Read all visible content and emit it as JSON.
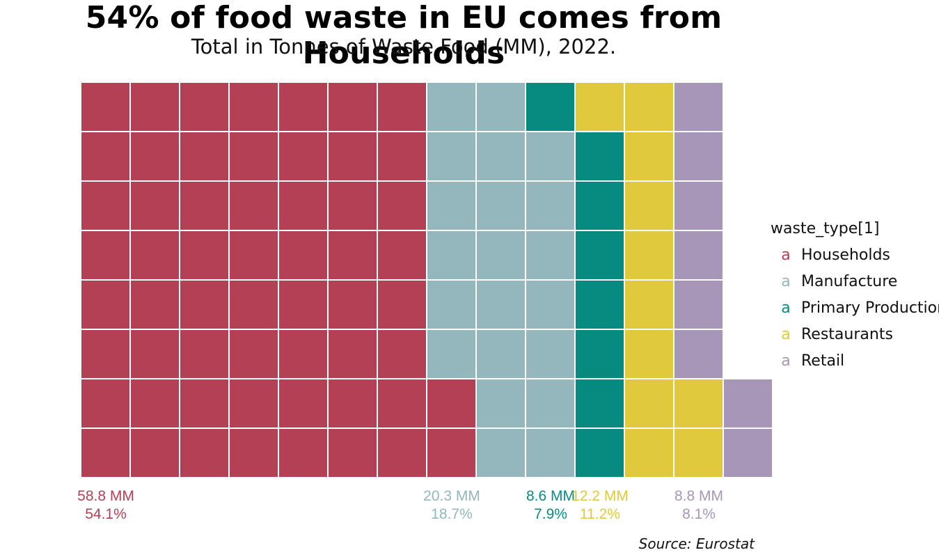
{
  "chart_data": {
    "type": "waffle",
    "title": "54% of food waste in EU comes from Households",
    "subtitle": "Total in Tonnes of Waste Food (MM), 2022.",
    "caption": "Source: Eurostat",
    "legend_title": "waste_type[1]",
    "legend_key_glyph": "a",
    "legend_position": "right",
    "grid_rows": 8,
    "fill_order": "column-wise, bottom to top",
    "categories": [
      {
        "name": "Households",
        "cells": 58,
        "amount_label": "58.8 MM",
        "pct_label": "54.1%",
        "color": "#b34054"
      },
      {
        "name": "Manufacture",
        "cells": 21,
        "amount_label": "20.3 MM",
        "pct_label": "18.7%",
        "color": "#94b6bd"
      },
      {
        "name": "Primary Production",
        "cells": 8,
        "amount_label": "8.6 MM",
        "pct_label": "7.9%",
        "color": "#078b81"
      },
      {
        "name": "Restaurants",
        "cells": 11,
        "amount_label": "12.2 MM",
        "pct_label": "11.2%",
        "color": "#e0c93c"
      },
      {
        "name": "Retail",
        "cells": 8,
        "amount_label": "8.8 MM",
        "pct_label": "8.1%",
        "color": "#a896b9"
      }
    ]
  }
}
